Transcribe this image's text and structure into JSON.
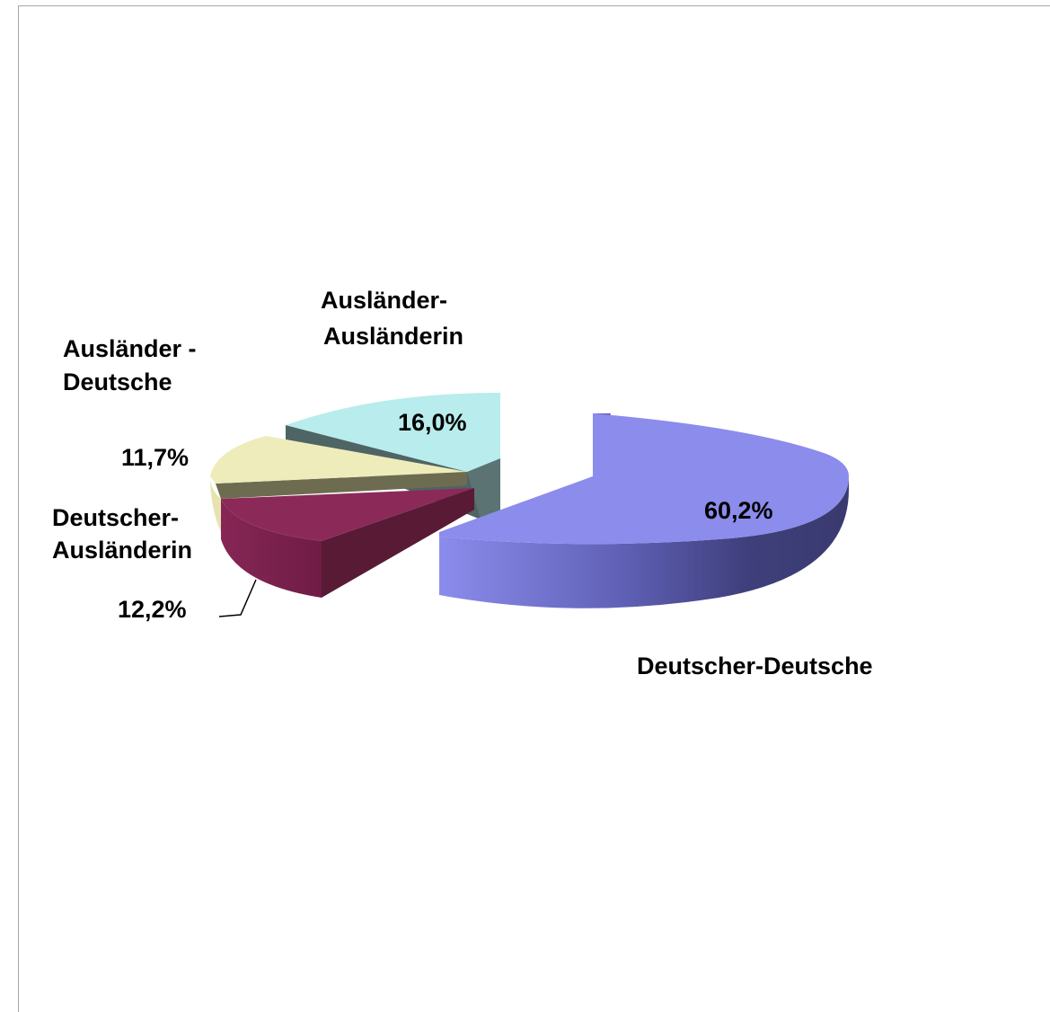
{
  "chart_data": {
    "type": "pie",
    "style": "3d-exploded",
    "slices": [
      {
        "label": "Deutscher-Deutsche",
        "value": 60.2,
        "value_label": "60,2%",
        "color": "#8b8cec"
      },
      {
        "label": "Deutscher-Ausländerin",
        "value": 12.2,
        "value_label": "12,2%",
        "color": "#8b2a58"
      },
      {
        "label": "Ausländer - Deutsche",
        "value": 11.7,
        "value_label": "11,7%",
        "color": "#eeecbb"
      },
      {
        "label": "Ausländer-Ausländerin",
        "value": 16.0,
        "value_label": "16,0%",
        "color": "#b9ecec"
      }
    ],
    "legend": "none",
    "labels": "outside"
  },
  "text": {
    "dd_name": "Deutscher-Deutsche",
    "dd_pct": "60,2%",
    "da_name_1": "Deutscher-",
    "da_name_2": "Ausländerin",
    "da_pct": "12,2%",
    "ad_name_1": "Ausländer -",
    "ad_name_2": "Deutsche",
    "ad_pct": "11,7%",
    "aa_name_1": "Ausländer-",
    "aa_name_2": "Ausländerin",
    "aa_pct": "16,0%"
  }
}
